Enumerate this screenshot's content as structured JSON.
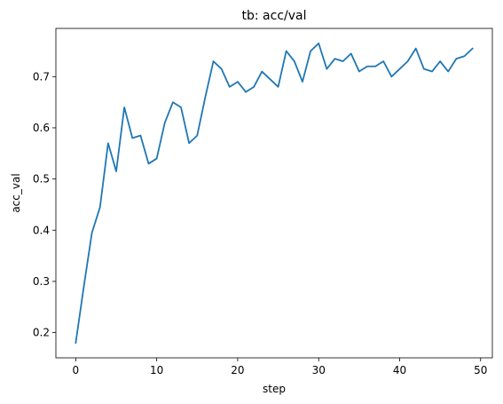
{
  "chart_data": {
    "type": "line",
    "title": "tb: acc/val",
    "xlabel": "step",
    "ylabel": "acc_val",
    "xlim": [
      -2.45,
      51.45
    ],
    "ylim": [
      0.1507,
      0.7942
    ],
    "xticks": [
      0,
      10,
      20,
      30,
      40,
      50
    ],
    "yticks": [
      0.2,
      0.3,
      0.4,
      0.5,
      0.6,
      0.7
    ],
    "xtick_labels": [
      "0",
      "10",
      "20",
      "30",
      "40",
      "50"
    ],
    "ytick_labels": [
      "0.2",
      "0.3",
      "0.4",
      "0.5",
      "0.6",
      "0.7"
    ],
    "grid": false,
    "legend": "none",
    "series": [
      {
        "color": "#1f77b4",
        "x": [
          0,
          1,
          2,
          3,
          4,
          5,
          6,
          7,
          8,
          9,
          10,
          11,
          12,
          13,
          14,
          15,
          16,
          17,
          18,
          19,
          20,
          21,
          22,
          23,
          24,
          25,
          26,
          27,
          28,
          29,
          30,
          31,
          32,
          33,
          34,
          35,
          36,
          37,
          38,
          39,
          40,
          41,
          42,
          43,
          44,
          45,
          46,
          47,
          48,
          49
        ],
        "y": [
          0.18,
          0.29,
          0.395,
          0.445,
          0.57,
          0.515,
          0.64,
          0.58,
          0.585,
          0.53,
          0.54,
          0.61,
          0.65,
          0.64,
          0.57,
          0.585,
          0.66,
          0.73,
          0.715,
          0.68,
          0.69,
          0.67,
          0.68,
          0.71,
          0.695,
          0.68,
          0.75,
          0.73,
          0.69,
          0.75,
          0.765,
          0.715,
          0.735,
          0.73,
          0.745,
          0.71,
          0.72,
          0.72,
          0.73,
          0.7,
          0.715,
          0.73,
          0.755,
          0.715,
          0.71,
          0.73,
          0.71,
          0.735,
          0.74,
          0.755
        ]
      }
    ]
  }
}
